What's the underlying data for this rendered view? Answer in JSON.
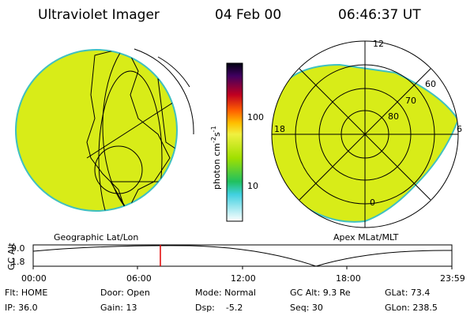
{
  "header": {
    "title": "Ultraviolet Imager",
    "date": "04 Feb 00",
    "time": "06:46:37 UT"
  },
  "colorbar": {
    "tick_high": "100",
    "tick_low": "10",
    "unit": {
      "base": "photon cm",
      "exp1": "-2",
      "mid": "s",
      "exp2": "-1"
    }
  },
  "left_panel": {
    "caption": "Geographic Lat/Lon"
  },
  "right_panel": {
    "caption": "Apex MLat/MLT",
    "labels": {
      "top": "12",
      "left": "18",
      "right": "6",
      "bottom": "0",
      "ring1": "60",
      "ring2": "70",
      "ring3": "80"
    }
  },
  "timeline": {
    "axis_label": "GC Alt",
    "y_high": "9.0",
    "y_low": "1.8",
    "times": [
      "00:00",
      "06:00",
      "12:00",
      "18:00",
      "23:59"
    ]
  },
  "info": {
    "row1": [
      "Flt: HOME",
      "Door: Open",
      "Mode: Normal",
      "GC Alt: 9.3 Re",
      "GLat: 73.4"
    ],
    "row2": [
      "IP: 36.0",
      "Gain: 13",
      "Dsp:    -5.2",
      "Seq: 30",
      "GLon: 238.5"
    ]
  }
}
